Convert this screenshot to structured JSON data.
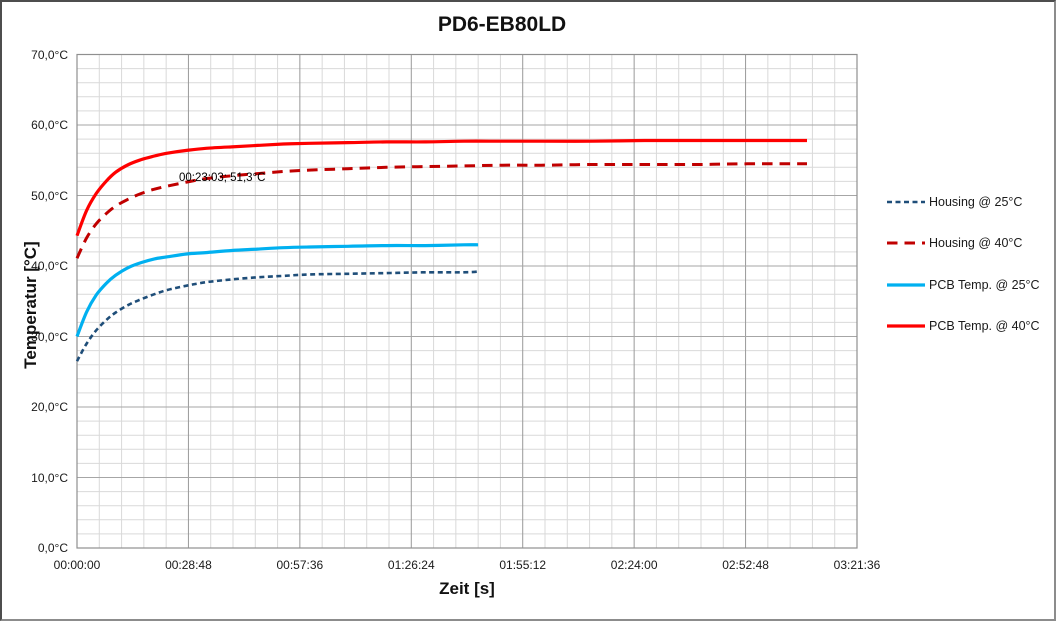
{
  "chart": {
    "title": "PD6-EB80LD"
  },
  "chart_data": {
    "type": "line",
    "title": "PD6-EB80LD",
    "xlabel": "Zeit [s]",
    "ylabel": "Temperatur [°C]",
    "x_tick_format": "hh:mm:ss",
    "xlim_seconds": [
      0,
      12096
    ],
    "ylim": [
      0,
      70
    ],
    "y_major_step": 10,
    "y_minor_step": 2,
    "x_major_step_seconds": 1728,
    "x_minor_per_major": 5,
    "grid": {
      "on": true,
      "minor_color": "#D9D9D9",
      "major_color": "#A6A6A6",
      "border_color": "#8F8F8F"
    },
    "legend_position": "right",
    "x_ticks": [
      {
        "s": 0,
        "label": "00:00:00"
      },
      {
        "s": 1728,
        "label": "00:28:48"
      },
      {
        "s": 3456,
        "label": "00:57:36"
      },
      {
        "s": 5184,
        "label": "01:26:24"
      },
      {
        "s": 6912,
        "label": "01:55:12"
      },
      {
        "s": 8640,
        "label": "02:24:00"
      },
      {
        "s": 10368,
        "label": "02:52:48"
      },
      {
        "s": 12096,
        "label": "03:21:36"
      }
    ],
    "y_ticks": [
      {
        "v": 0,
        "label": "0,0°C"
      },
      {
        "v": 10,
        "label": "10,0°C"
      },
      {
        "v": 20,
        "label": "20,0°C"
      },
      {
        "v": 30,
        "label": "30,0°C"
      },
      {
        "v": 40,
        "label": "40,0°C"
      },
      {
        "v": 50,
        "label": "50,0°C"
      },
      {
        "v": 60,
        "label": "60,0°C"
      },
      {
        "v": 70,
        "label": "70,0°C"
      }
    ],
    "annotation": {
      "text": "00:23:03; 51,3°C",
      "t_seconds": 1383,
      "value_c": 51.3,
      "series": "Housing @ 40°C"
    },
    "series": [
      {
        "name": "Housing @ 25°C",
        "color": "#1F4E79",
        "style": "dashed",
        "dash": "5 3.5",
        "width": 2.6,
        "points": [
          [
            0,
            26.5
          ],
          [
            150,
            29.0
          ],
          [
            300,
            30.9
          ],
          [
            450,
            32.3
          ],
          [
            600,
            33.4
          ],
          [
            800,
            34.5
          ],
          [
            1000,
            35.3
          ],
          [
            1200,
            36.0
          ],
          [
            1400,
            36.6
          ],
          [
            1700,
            37.2
          ],
          [
            2000,
            37.7
          ],
          [
            2400,
            38.1
          ],
          [
            2800,
            38.4
          ],
          [
            3200,
            38.6
          ],
          [
            3600,
            38.8
          ],
          [
            4200,
            38.9
          ],
          [
            4800,
            39.0
          ],
          [
            5400,
            39.1
          ],
          [
            6000,
            39.1
          ],
          [
            6220,
            39.2
          ]
        ]
      },
      {
        "name": "Housing @ 40°C",
        "color": "#C00000",
        "style": "dashed",
        "dash": "10.5 7",
        "width": 3,
        "points": [
          [
            0,
            41.1
          ],
          [
            150,
            44.0
          ],
          [
            300,
            46.0
          ],
          [
            450,
            47.4
          ],
          [
            600,
            48.5
          ],
          [
            800,
            49.5
          ],
          [
            1000,
            50.3
          ],
          [
            1200,
            50.9
          ],
          [
            1383,
            51.3
          ],
          [
            1700,
            51.9
          ],
          [
            2000,
            52.4
          ],
          [
            2400,
            52.8
          ],
          [
            2800,
            53.1
          ],
          [
            3200,
            53.4
          ],
          [
            3600,
            53.6
          ],
          [
            4200,
            53.8
          ],
          [
            4800,
            54.0
          ],
          [
            5400,
            54.1
          ],
          [
            6000,
            54.2
          ],
          [
            6600,
            54.3
          ],
          [
            7200,
            54.3
          ],
          [
            8000,
            54.4
          ],
          [
            8800,
            54.4
          ],
          [
            9600,
            54.4
          ],
          [
            10400,
            54.5
          ],
          [
            11320,
            54.5
          ]
        ]
      },
      {
        "name": "PCB Temp. @ 25°C",
        "color": "#00B0F0",
        "style": "solid",
        "dash": "",
        "width": 3.2,
        "points": [
          [
            0,
            30.0
          ],
          [
            150,
            33.5
          ],
          [
            300,
            35.9
          ],
          [
            450,
            37.5
          ],
          [
            600,
            38.7
          ],
          [
            800,
            39.8
          ],
          [
            1000,
            40.5
          ],
          [
            1200,
            41.0
          ],
          [
            1400,
            41.3
          ],
          [
            1700,
            41.7
          ],
          [
            2000,
            41.9
          ],
          [
            2400,
            42.2
          ],
          [
            2800,
            42.4
          ],
          [
            3200,
            42.6
          ],
          [
            3600,
            42.7
          ],
          [
            4200,
            42.8
          ],
          [
            4800,
            42.9
          ],
          [
            5400,
            42.9
          ],
          [
            6000,
            43.0
          ],
          [
            6220,
            43.0
          ]
        ]
      },
      {
        "name": "PCB Temp. @ 40°C",
        "color": "#FE0000",
        "style": "solid",
        "dash": "",
        "width": 3.2,
        "points": [
          [
            0,
            44.3
          ],
          [
            150,
            47.9
          ],
          [
            300,
            50.3
          ],
          [
            450,
            52.0
          ],
          [
            600,
            53.3
          ],
          [
            800,
            54.4
          ],
          [
            1000,
            55.1
          ],
          [
            1200,
            55.6
          ],
          [
            1400,
            56.0
          ],
          [
            1700,
            56.4
          ],
          [
            2000,
            56.7
          ],
          [
            2400,
            56.9
          ],
          [
            2800,
            57.1
          ],
          [
            3200,
            57.3
          ],
          [
            3600,
            57.4
          ],
          [
            4200,
            57.5
          ],
          [
            4800,
            57.6
          ],
          [
            5400,
            57.6
          ],
          [
            6000,
            57.7
          ],
          [
            6600,
            57.7
          ],
          [
            7200,
            57.7
          ],
          [
            8000,
            57.7
          ],
          [
            8800,
            57.8
          ],
          [
            9600,
            57.8
          ],
          [
            10400,
            57.8
          ],
          [
            11320,
            57.8
          ]
        ]
      }
    ]
  }
}
